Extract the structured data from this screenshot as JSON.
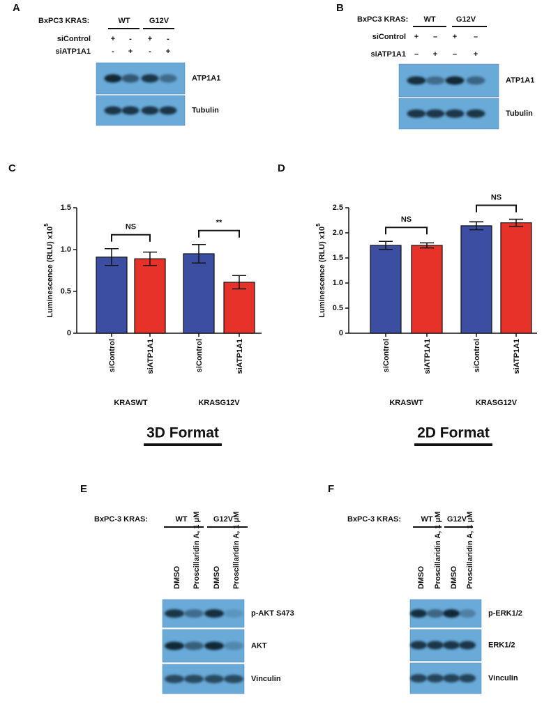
{
  "blots": {
    "A": {
      "label": "A",
      "header": "BxPC3 KRAS:",
      "groups": [
        "WT",
        "G12V"
      ],
      "rows": [
        {
          "name": "siControl",
          "marks": [
            "+",
            "-",
            "+",
            "-"
          ]
        },
        {
          "name": "siATP1A1",
          "marks": [
            "-",
            "+",
            "-",
            "+"
          ]
        }
      ],
      "bands": [
        "ATP1A1",
        "Tubulin"
      ]
    },
    "B": {
      "label": "B",
      "header": "BxPC3 KRAS:",
      "groups": [
        "WT",
        "G12V"
      ],
      "rows": [
        {
          "name": "siControl",
          "marks": [
            "+",
            "–",
            "+",
            "–"
          ]
        },
        {
          "name": "siATP1A1",
          "marks": [
            "–",
            "+",
            "–",
            "+"
          ]
        }
      ],
      "bands": [
        "ATP1A1",
        "Tubulin"
      ]
    },
    "E": {
      "label": "E",
      "header": "BxPC-3 KRAS:",
      "groups": [
        "WT",
        "G12V"
      ],
      "lanes": [
        "DMSO",
        "Proscillaridin A, 1 μM",
        "DMSO",
        "Proscillaridin A, 1 μM"
      ],
      "bands": [
        "p-AKT S473",
        "AKT",
        "Vinculin"
      ]
    },
    "F": {
      "label": "F",
      "header": "BxPC-3 KRAS:",
      "groups": [
        "WT",
        "G12V"
      ],
      "lanes": [
        "DMSO",
        "Proscillaridin A, 1 μM",
        "DMSO",
        "Proscillaridin A, 1 μM"
      ],
      "bands": [
        "p-ERK1/2",
        "ERK1/2",
        "Vinculin"
      ]
    }
  },
  "chart_data": [
    {
      "type": "bar",
      "panel": "C",
      "title": "3D Format",
      "y_label": "Luminescence (RLU) x10",
      "y_label_exponent": "5",
      "categories": [
        "siControl",
        "siATP1A1",
        "siControl",
        "siATP1A1"
      ],
      "groups": [
        "KRASWT",
        "KRASG12V"
      ],
      "values": [
        0.91,
        0.89,
        0.95,
        0.61
      ],
      "errors": [
        0.1,
        0.08,
        0.11,
        0.08
      ],
      "colors": [
        "#3b4ea2",
        "#e63228",
        "#3b4ea2",
        "#e63228"
      ],
      "annotations": [
        "NS",
        "**"
      ],
      "ylim": [
        0,
        1.5
      ],
      "yticks": [
        0,
        0.5,
        {
          "value": 1,
          "label": "1.0"
        },
        1.5
      ]
    },
    {
      "type": "bar",
      "panel": "D",
      "title": "2D Format",
      "y_label": "Luminescence (RLU) x10",
      "y_label_exponent": "5",
      "categories": [
        "siControl",
        "siATP1A1",
        "siControl",
        "siATP1A1"
      ],
      "groups": [
        "KRASWT",
        "KRASG12V"
      ],
      "values": [
        1.75,
        1.75,
        2.14,
        2.2
      ],
      "errors": [
        0.08,
        0.05,
        0.08,
        0.07
      ],
      "colors": [
        "#3b4ea2",
        "#e63228",
        "#3b4ea2",
        "#e63228"
      ],
      "annotations": [
        "NS",
        "NS"
      ],
      "ylim": [
        0,
        2.5
      ],
      "yticks": [
        0,
        0.5,
        {
          "value": 1,
          "label": "1.0"
        },
        1.5,
        {
          "value": 2,
          "label": "2.0"
        },
        2.5
      ]
    }
  ]
}
